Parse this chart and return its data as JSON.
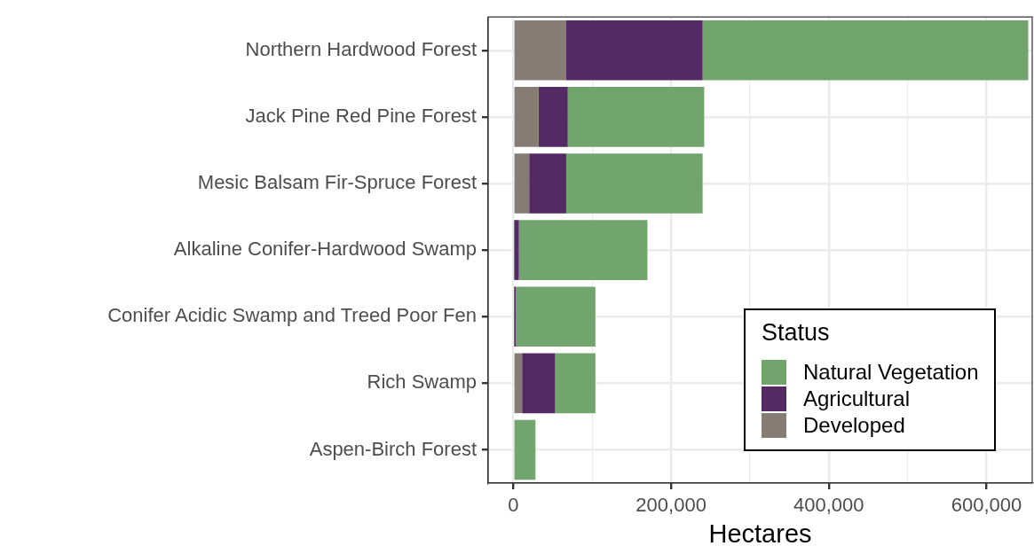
{
  "chart_data": {
    "type": "bar",
    "orientation": "horizontal",
    "stacked": true,
    "xlabel": "Hectares",
    "legend_title": "Status",
    "legend": "bottom right",
    "grid": true,
    "categories": [
      "Northern Hardwood Forest",
      "Jack Pine Red Pine Forest",
      "Mesic Balsam Fir-Spruce Forest",
      "Alkaline Conifer-Hardwood Swamp",
      "Conifer Acidic Swamp and Treed Poor Fen",
      "Rich Swamp",
      "Aspen-Birch Forest"
    ],
    "series": [
      {
        "name": "Developed",
        "color": "#857c74",
        "values": [
          67000,
          32000,
          20000,
          1000,
          1000,
          11000,
          0
        ]
      },
      {
        "name": "Agricultural",
        "color": "#532a64",
        "values": [
          173000,
          37000,
          47000,
          6000,
          2000,
          42000,
          0
        ]
      },
      {
        "name": "Natural Vegetation",
        "color": "#72a46e",
        "values": [
          413000,
          173000,
          173000,
          163000,
          101000,
          51000,
          28000
        ]
      }
    ],
    "xlim": [
      -32000,
      658000
    ],
    "xticks": [
      0,
      {
        "value": 100000,
        "label": null
      },
      {
        "value": 200000,
        "label": "200,000"
      },
      {
        "value": 300000,
        "label": null
      },
      {
        "value": 400000,
        "label": "400,000"
      },
      {
        "value": 500000,
        "label": null
      },
      {
        "value": 600000,
        "label": "600,000"
      }
    ]
  }
}
